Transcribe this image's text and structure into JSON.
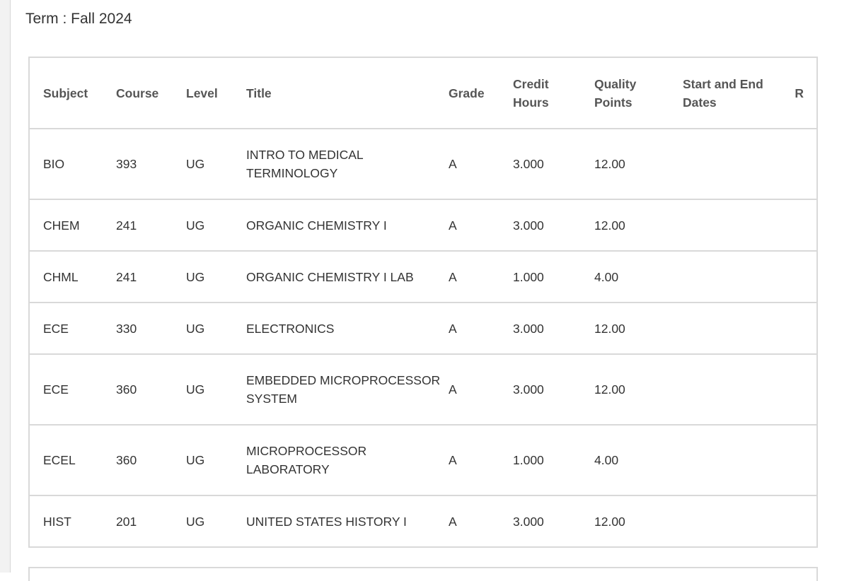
{
  "term": {
    "label": "Term : Fall 2024"
  },
  "table": {
    "headers": {
      "subject": "Subject",
      "course": "Course",
      "level": "Level",
      "title": "Title",
      "grade": "Grade",
      "credit_hours_line1": "Credit",
      "credit_hours_line2": "Hours",
      "quality_points_line1": "Quality",
      "quality_points_line2": "Points",
      "dates_line1": "Start and End",
      "dates_line2": "Dates",
      "r": "R"
    },
    "rows": [
      {
        "subject": "BIO",
        "course": "393",
        "level": "UG",
        "title": "INTRO TO MEDICAL TERMINOLOGY",
        "grade": "A",
        "credit_hours": "3.000",
        "quality_points": "12.00",
        "dates": "",
        "r": ""
      },
      {
        "subject": "CHEM",
        "course": "241",
        "level": "UG",
        "title": "ORGANIC CHEMISTRY I",
        "grade": "A",
        "credit_hours": "3.000",
        "quality_points": "12.00",
        "dates": "",
        "r": ""
      },
      {
        "subject": "CHML",
        "course": "241",
        "level": "UG",
        "title": "ORGANIC CHEMISTRY I LAB",
        "grade": "A",
        "credit_hours": "1.000",
        "quality_points": "4.00",
        "dates": "",
        "r": ""
      },
      {
        "subject": "ECE",
        "course": "330",
        "level": "UG",
        "title": "ELECTRONICS",
        "grade": "A",
        "credit_hours": "3.000",
        "quality_points": "12.00",
        "dates": "",
        "r": ""
      },
      {
        "subject": "ECE",
        "course": "360",
        "level": "UG",
        "title": "EMBEDDED MICROPROCESSOR SYSTEM",
        "grade": "A",
        "credit_hours": "3.000",
        "quality_points": "12.00",
        "dates": "",
        "r": ""
      },
      {
        "subject": "ECEL",
        "course": "360",
        "level": "UG",
        "title": "MICROPROCESSOR LABORATORY",
        "grade": "A",
        "credit_hours": "1.000",
        "quality_points": "4.00",
        "dates": "",
        "r": ""
      },
      {
        "subject": "HIST",
        "course": "201",
        "level": "UG",
        "title": "UNITED STATES HISTORY I",
        "grade": "A",
        "credit_hours": "3.000",
        "quality_points": "12.00",
        "dates": "",
        "r": ""
      }
    ]
  },
  "colors": {
    "border": "#d9d9d9",
    "header_text": "#555555",
    "body_text": "#333333"
  }
}
